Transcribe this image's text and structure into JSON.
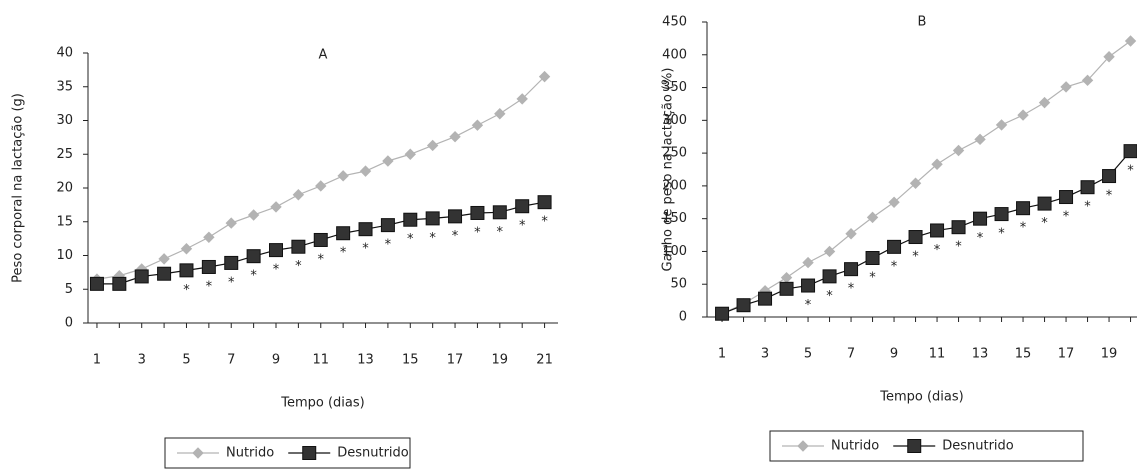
{
  "chart_data": [
    {
      "type": "line",
      "title": "A",
      "xlabel": "Tempo (dias)",
      "ylabel": "Peso corporal na lactação (g)",
      "x": [
        1,
        2,
        3,
        4,
        5,
        6,
        7,
        8,
        9,
        10,
        11,
        12,
        13,
        14,
        15,
        16,
        17,
        18,
        19,
        20,
        21
      ],
      "series": [
        {
          "name": "Nutrido",
          "color": "#b3b3b3",
          "marker": "diamond",
          "values": [
            6.5,
            7,
            8,
            9.5,
            11,
            12.7,
            14.8,
            16,
            17.2,
            19,
            20.3,
            21.8,
            22.5,
            24,
            25,
            26.3,
            27.6,
            29.3,
            31,
            33.2,
            36.5
          ]
        },
        {
          "name": "Desnutrido",
          "color": "#333333",
          "marker": "square",
          "values": [
            5.8,
            5.8,
            6.9,
            7.3,
            7.8,
            8.3,
            8.9,
            9.9,
            10.8,
            11.3,
            12.3,
            13.3,
            13.9,
            14.5,
            15.3,
            15.5,
            15.8,
            16.3,
            16.4,
            17.3,
            17.9
          ]
        }
      ],
      "xlim": [
        0.6,
        21.6
      ],
      "xticks": [
        1,
        3,
        5,
        7,
        9,
        11,
        13,
        15,
        17,
        19,
        21
      ],
      "xminorticks": [
        1,
        2,
        3,
        4,
        5,
        6,
        7,
        8,
        9,
        10,
        11,
        12,
        13,
        14,
        15,
        16,
        17,
        18,
        19,
        20,
        21
      ],
      "ylim": [
        0,
        40
      ],
      "yticks": [
        0,
        5,
        10,
        15,
        20,
        25,
        30,
        35,
        40
      ],
      "annotations": [
        {
          "x": 5,
          "text": "*"
        },
        {
          "x": 6,
          "text": "*"
        },
        {
          "x": 7,
          "text": "*"
        },
        {
          "x": 8,
          "text": "*"
        },
        {
          "x": 9,
          "text": "*"
        },
        {
          "x": 10,
          "text": "*"
        },
        {
          "x": 11,
          "text": "*"
        },
        {
          "x": 12,
          "text": "*"
        },
        {
          "x": 13,
          "text": "*"
        },
        {
          "x": 14,
          "text": "*"
        },
        {
          "x": 15,
          "text": "*"
        },
        {
          "x": 16,
          "text": "*"
        },
        {
          "x": 17,
          "text": "*"
        },
        {
          "x": 18,
          "text": "*"
        },
        {
          "x": 19,
          "text": "*"
        },
        {
          "x": 20,
          "text": "*"
        },
        {
          "x": 21,
          "text": "*"
        }
      ],
      "legend": "bottom"
    },
    {
      "type": "line",
      "title": "B",
      "xlabel": "Tempo (dias)",
      "ylabel": "Ganho de peso na lactação (%)",
      "x": [
        1,
        2,
        3,
        4,
        5,
        6,
        7,
        8,
        9,
        10,
        11,
        12,
        13,
        14,
        15,
        16,
        17,
        18,
        19,
        20
      ],
      "series": [
        {
          "name": "Nutrido",
          "color": "#b3b3b3",
          "marker": "diamond",
          "values": [
            5,
            20,
            40,
            60,
            83,
            100,
            127,
            152,
            175,
            204,
            233,
            254,
            271,
            293,
            308,
            327,
            351,
            361,
            397,
            421
          ]
        },
        {
          "name": "Desnutrido",
          "color": "#333333",
          "marker": "square",
          "values": [
            5,
            18,
            28,
            43,
            48,
            62,
            73,
            90,
            107,
            122,
            132,
            137,
            150,
            157,
            166,
            173,
            183,
            198,
            215,
            253
          ]
        }
      ],
      "xlim": [
        0.3,
        20.3
      ],
      "xticks": [
        1,
        3,
        5,
        7,
        9,
        11,
        13,
        15,
        17,
        19
      ],
      "xminorticks": [
        1,
        2,
        3,
        4,
        5,
        6,
        7,
        8,
        9,
        10,
        11,
        12,
        13,
        14,
        15,
        16,
        17,
        18,
        19,
        20
      ],
      "ylim": [
        0,
        450
      ],
      "yticks": [
        0,
        50,
        100,
        150,
        200,
        250,
        300,
        350,
        400,
        450
      ],
      "annotations": [
        {
          "x": 5,
          "text": "*"
        },
        {
          "x": 6,
          "text": "*"
        },
        {
          "x": 7,
          "text": "*"
        },
        {
          "x": 8,
          "text": "*"
        },
        {
          "x": 9,
          "text": "*"
        },
        {
          "x": 10,
          "text": "*"
        },
        {
          "x": 11,
          "text": "*"
        },
        {
          "x": 12,
          "text": "*"
        },
        {
          "x": 13,
          "text": "*"
        },
        {
          "x": 14,
          "text": "*"
        },
        {
          "x": 15,
          "text": "*"
        },
        {
          "x": 16,
          "text": "*"
        },
        {
          "x": 17,
          "text": "*"
        },
        {
          "x": 18,
          "text": "*"
        },
        {
          "x": 19,
          "text": "*"
        },
        {
          "x": 20,
          "text": "*"
        }
      ],
      "legend": "bottom"
    }
  ]
}
